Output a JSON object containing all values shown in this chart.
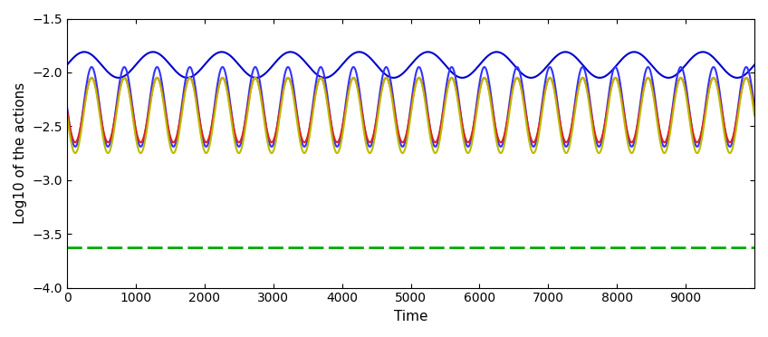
{
  "t_max": 10000,
  "n_points": 5000,
  "blue1_mean": -1.93,
  "blue1_amp": 0.12,
  "blue1_freq": 0.001,
  "blue2_mean": -2.32,
  "blue2_amp": 0.37,
  "blue2_freq": 0.002,
  "red_mean": -2.35,
  "red_amp": 0.3,
  "red_freq": 0.002,
  "yellow_mean": -2.4,
  "yellow_amp": 0.35,
  "yellow_freq": 0.002,
  "green_level": -3.63,
  "blue1_color": "#0000cc",
  "blue2_color": "#3333ff",
  "red_color": "#dd2222",
  "yellow_color": "#bbbb00",
  "green_color": "#00aa00",
  "xlim": [
    0,
    10000
  ],
  "ylim": [
    -4,
    -1.5
  ],
  "yticks": [
    -4,
    -3.5,
    -3,
    -2.5,
    -2,
    -1.5
  ],
  "xticks": [
    0,
    1000,
    2000,
    3000,
    4000,
    5000,
    6000,
    7000,
    8000,
    9000
  ],
  "xlabel": "Time",
  "ylabel": "Log10 of the actions",
  "bg_color": "#ffffff",
  "linewidth": 1.5,
  "green_linewidth": 2.0,
  "phase_blue1": 0.0,
  "phase_blue2": 3.14159,
  "phase_red": 3.14159,
  "phase_yellow": 3.14159,
  "blue2_freq_mult": 2.1,
  "red_freq_mult": 2.1,
  "yellow_freq_mult": 2.1
}
